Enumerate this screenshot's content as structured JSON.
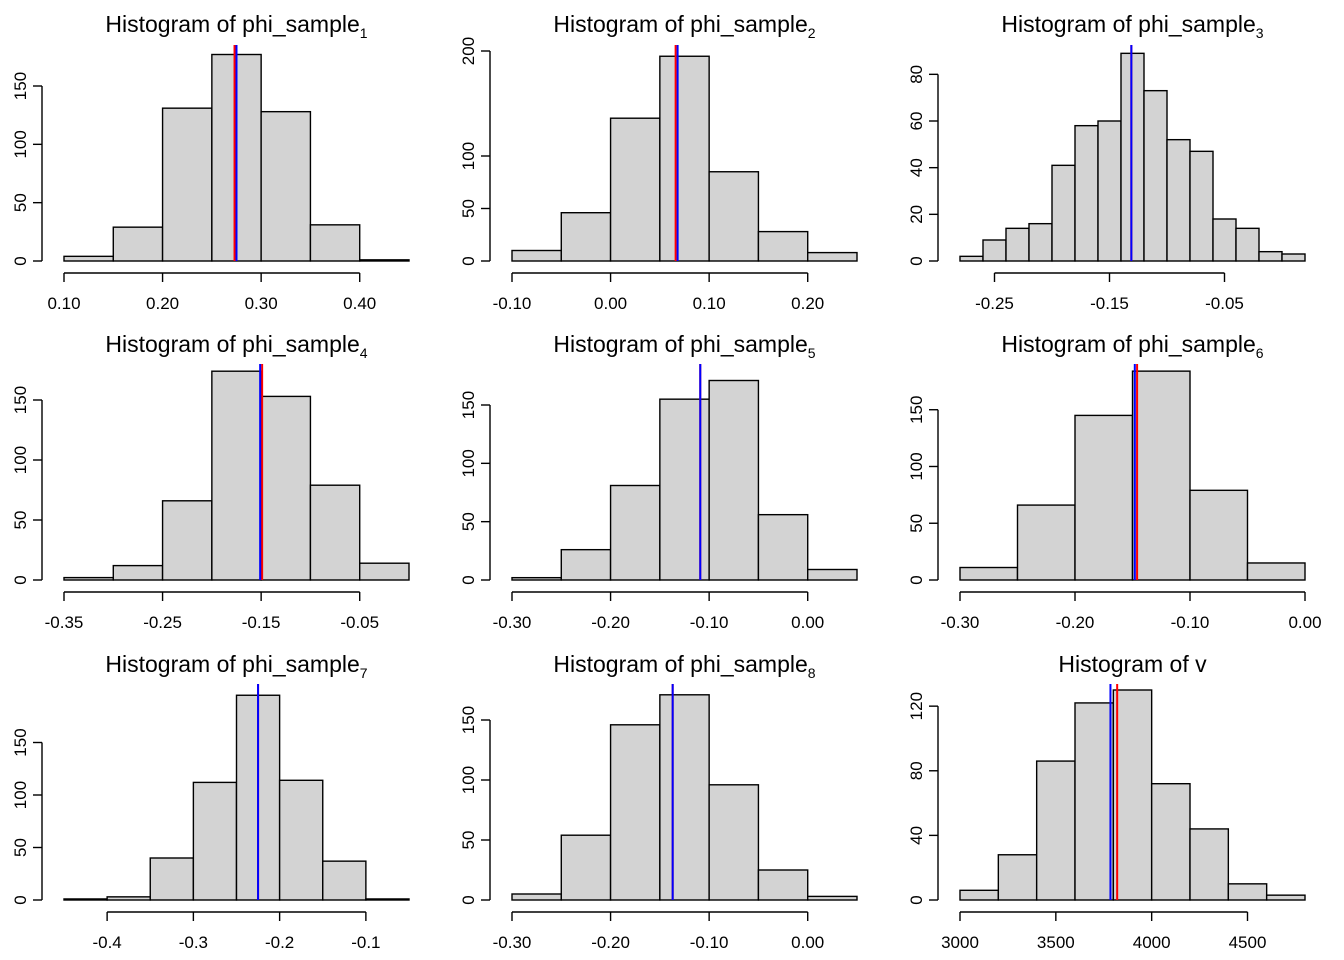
{
  "chart_data": [
    {
      "type": "bar",
      "title": "Histogram of  phi_sample",
      "title_subscript": "1",
      "breaks": [
        0.1,
        0.15,
        0.2,
        0.25,
        0.3,
        0.35,
        0.4,
        0.45
      ],
      "counts": [
        4,
        29,
        131,
        177,
        128,
        31,
        1
      ],
      "xlim": [
        0.1,
        0.45
      ],
      "ylim": [
        0,
        180
      ],
      "x_ticks": [
        0.1,
        0.2,
        0.3,
        0.4
      ],
      "x_tick_labels": [
        "0.10",
        "0.20",
        "0.30",
        "0.40"
      ],
      "y_ticks": [
        0,
        50,
        100,
        150
      ],
      "y_tick_labels": [
        "0",
        "50",
        "100",
        "150"
      ],
      "vlines": [
        {
          "x": 0.273,
          "color": "#ff0000"
        },
        {
          "x": 0.275,
          "color": "#0000ff"
        }
      ]
    },
    {
      "type": "bar",
      "title": "Histogram of  phi_sample",
      "title_subscript": "2",
      "breaks": [
        -0.1,
        -0.05,
        0.0,
        0.05,
        0.1,
        0.15,
        0.2,
        0.25
      ],
      "counts": [
        10,
        46,
        136,
        195,
        85,
        28,
        8
      ],
      "xlim": [
        -0.1,
        0.25
      ],
      "ylim": [
        0,
        200
      ],
      "x_ticks": [
        -0.1,
        0.0,
        0.1,
        0.2
      ],
      "x_tick_labels": [
        "-0.10",
        "0.00",
        "0.10",
        "0.20"
      ],
      "y_ticks": [
        0,
        50,
        100,
        200
      ],
      "y_tick_labels": [
        "0",
        "50",
        "100",
        "200"
      ],
      "vlines": [
        {
          "x": 0.066,
          "color": "#ff0000"
        },
        {
          "x": 0.068,
          "color": "#0000ff"
        }
      ]
    },
    {
      "type": "bar",
      "title": "Histogram of  phi_sample",
      "title_subscript": "3",
      "breaks": [
        -0.28,
        -0.26,
        -0.24,
        -0.22,
        -0.2,
        -0.18,
        -0.16,
        -0.14,
        -0.12,
        -0.1,
        -0.08,
        -0.06,
        -0.04,
        -0.02,
        0.0,
        0.02
      ],
      "counts": [
        2,
        9,
        14,
        16,
        41,
        58,
        60,
        89,
        73,
        52,
        47,
        18,
        14,
        4,
        3
      ],
      "xlim": [
        -0.28,
        0.02
      ],
      "ylim": [
        0,
        90
      ],
      "x_ticks": [
        -0.25,
        -0.15,
        -0.05
      ],
      "x_tick_labels": [
        "-0.25",
        "-0.15",
        "-0.05"
      ],
      "y_ticks": [
        0,
        20,
        40,
        60,
        80
      ],
      "y_tick_labels": [
        "0",
        "20",
        "40",
        "60",
        "80"
      ],
      "vlines": [
        {
          "x": -0.131,
          "color": "#ff0000"
        },
        {
          "x": -0.131,
          "color": "#0000ff"
        }
      ]
    },
    {
      "type": "bar",
      "title": "Histogram of  phi_sample",
      "title_subscript": "4",
      "breaks": [
        -0.35,
        -0.3,
        -0.25,
        -0.2,
        -0.15,
        -0.1,
        -0.05,
        0.0
      ],
      "counts": [
        2,
        12,
        66,
        174,
        153,
        79,
        14
      ],
      "xlim": [
        -0.35,
        0.0
      ],
      "ylim": [
        0,
        175
      ],
      "x_ticks": [
        -0.35,
        -0.25,
        -0.15,
        -0.05
      ],
      "x_tick_labels": [
        "-0.35",
        "-0.25",
        "-0.15",
        "-0.05"
      ],
      "y_ticks": [
        0,
        50,
        100,
        150
      ],
      "y_tick_labels": [
        "0",
        "50",
        "100",
        "150"
      ],
      "vlines": [
        {
          "x": -0.149,
          "color": "#ff0000"
        },
        {
          "x": -0.151,
          "color": "#0000ff"
        }
      ]
    },
    {
      "type": "bar",
      "title": "Histogram of  phi_sample",
      "title_subscript": "5",
      "breaks": [
        -0.3,
        -0.25,
        -0.2,
        -0.15,
        -0.1,
        -0.05,
        0.0,
        0.05
      ],
      "counts": [
        2,
        26,
        81,
        155,
        171,
        56,
        9
      ],
      "xlim": [
        -0.3,
        0.05
      ],
      "ylim": [
        0,
        180
      ],
      "x_ticks": [
        -0.3,
        -0.2,
        -0.1,
        0.0
      ],
      "x_tick_labels": [
        "-0.30",
        "-0.20",
        "-0.10",
        "0.00"
      ],
      "y_ticks": [
        0,
        50,
        100,
        150
      ],
      "y_tick_labels": [
        "0",
        "50",
        "100",
        "150"
      ],
      "vlines": [
        {
          "x": -0.109,
          "color": "#ff0000"
        },
        {
          "x": -0.109,
          "color": "#0000ff"
        }
      ]
    },
    {
      "type": "bar",
      "title": "Histogram of  phi_sample",
      "title_subscript": "6",
      "breaks": [
        -0.3,
        -0.25,
        -0.2,
        -0.15,
        -0.1,
        -0.05,
        0.0
      ],
      "counts": [
        11,
        66,
        145,
        184,
        79,
        15
      ],
      "xlim": [
        -0.3,
        0.0
      ],
      "ylim": [
        0,
        185
      ],
      "x_ticks": [
        -0.3,
        -0.2,
        -0.1,
        0.0
      ],
      "x_tick_labels": [
        "-0.30",
        "-0.20",
        "-0.10",
        "0.00"
      ],
      "y_ticks": [
        0,
        50,
        100,
        150
      ],
      "y_tick_labels": [
        "0",
        "50",
        "100",
        "150"
      ],
      "vlines": [
        {
          "x": -0.146,
          "color": "#ff0000"
        },
        {
          "x": -0.148,
          "color": "#0000ff"
        }
      ]
    },
    {
      "type": "bar",
      "title": "Histogram of  phi_sample",
      "title_subscript": "7",
      "breaks": [
        -0.45,
        -0.4,
        -0.35,
        -0.3,
        -0.25,
        -0.2,
        -0.15,
        -0.1,
        -0.05
      ],
      "counts": [
        1,
        3,
        40,
        112,
        195,
        114,
        37,
        1
      ],
      "xlim": [
        -0.45,
        -0.05
      ],
      "ylim": [
        0,
        200
      ],
      "x_ticks": [
        -0.4,
        -0.3,
        -0.2,
        -0.1
      ],
      "x_tick_labels": [
        "-0.4",
        "-0.3",
        "-0.2",
        "-0.1"
      ],
      "y_ticks": [
        0,
        50,
        100,
        150
      ],
      "y_tick_labels": [
        "0",
        "50",
        "100",
        "150"
      ],
      "vlines": [
        {
          "x": -0.225,
          "color": "#ff0000"
        },
        {
          "x": -0.225,
          "color": "#0000ff"
        }
      ]
    },
    {
      "type": "bar",
      "title": "Histogram of  phi_sample",
      "title_subscript": "8",
      "breaks": [
        -0.3,
        -0.25,
        -0.2,
        -0.15,
        -0.1,
        -0.05,
        0.0,
        0.05
      ],
      "counts": [
        5,
        54,
        146,
        171,
        96,
        25,
        3
      ],
      "xlim": [
        -0.3,
        0.05
      ],
      "ylim": [
        0,
        175
      ],
      "x_ticks": [
        -0.3,
        -0.2,
        -0.1,
        0.0
      ],
      "x_tick_labels": [
        "-0.30",
        "-0.20",
        "-0.10",
        "0.00"
      ],
      "y_ticks": [
        0,
        50,
        100,
        150
      ],
      "y_tick_labels": [
        "0",
        "50",
        "100",
        "150"
      ],
      "vlines": [
        {
          "x": -0.137,
          "color": "#ff0000"
        },
        {
          "x": -0.137,
          "color": "#0000ff"
        }
      ]
    },
    {
      "type": "bar",
      "title": "Histogram of  v",
      "title_subscript": "",
      "breaks": [
        3000,
        3200,
        3400,
        3600,
        3800,
        4000,
        4200,
        4400,
        4600,
        4800
      ],
      "counts": [
        6,
        28,
        86,
        122,
        130,
        72,
        44,
        10,
        3
      ],
      "xlim": [
        3000,
        4800
      ],
      "ylim": [
        0,
        130
      ],
      "x_ticks": [
        3000,
        3500,
        4000,
        4500
      ],
      "x_tick_labels": [
        "3000",
        "3500",
        "4000",
        "4500"
      ],
      "y_ticks": [
        0,
        40,
        80,
        120
      ],
      "y_tick_labels": [
        "0",
        "40",
        "80",
        "120"
      ],
      "vlines": [
        {
          "x": 3820,
          "color": "#ff0000"
        },
        {
          "x": 3785,
          "color": "#0000ff"
        }
      ]
    }
  ]
}
